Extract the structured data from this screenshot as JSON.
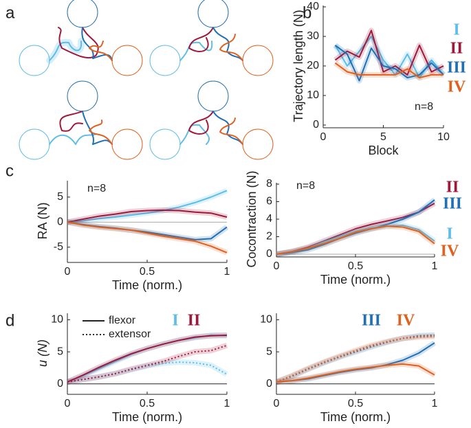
{
  "panel_labels": [
    "a",
    "b",
    "c",
    "d"
  ],
  "chart_data": [
    {
      "type": "line",
      "ylabel": "Trajectory length (N)",
      "xlabel": "Block",
      "annotation": "n=8",
      "x": [
        1,
        2,
        3,
        4,
        5,
        6,
        7,
        8,
        9,
        10
      ],
      "xlim": [
        0,
        10
      ],
      "xticks": [
        0,
        5,
        10
      ],
      "ylim": [
        0,
        40
      ],
      "yticks": [
        0,
        10,
        20,
        30,
        40
      ],
      "series": [
        {
          "name": "I",
          "color": "#5cbde9",
          "values": [
            27,
            20,
            25,
            30,
            22,
            17,
            24,
            16,
            22,
            17
          ]
        },
        {
          "name": "II",
          "color": "#a0173a",
          "values": [
            22,
            25,
            23,
            32,
            18,
            20,
            17,
            27,
            18,
            20
          ]
        },
        {
          "name": "III",
          "color": "#1f6fb5",
          "values": [
            27,
            24,
            15,
            26,
            20,
            19,
            16,
            17,
            21,
            17
          ]
        },
        {
          "name": "IV",
          "color": "#e0601e",
          "values": [
            21,
            18,
            17,
            17,
            17,
            17,
            19,
            16,
            17,
            17
          ]
        }
      ]
    },
    {
      "type": "line",
      "ylabel": "RA (N)",
      "xlabel": "Time (norm.)",
      "annotation": "n=8",
      "x": [
        0,
        0.1,
        0.2,
        0.3,
        0.4,
        0.5,
        0.6,
        0.7,
        0.8,
        0.9,
        1
      ],
      "xlim": [
        0,
        1
      ],
      "xticks": [
        0,
        0.5,
        1
      ],
      "ylim": [
        -7.5,
        8
      ],
      "yticks": [
        -5,
        0,
        5
      ],
      "reference_line": 0,
      "series": [
        {
          "color": "#5cbde9",
          "values": [
            0,
            0.3,
            0.7,
            1.0,
            1.4,
            1.8,
            2.3,
            3.0,
            3.9,
            5.0,
            6.3
          ]
        },
        {
          "color": "#a0173a",
          "values": [
            0,
            0.6,
            1.2,
            1.6,
            2.1,
            2.3,
            2.4,
            2.3,
            2.0,
            1.8,
            1.0
          ]
        },
        {
          "color": "#1f6fb5",
          "values": [
            0,
            -0.5,
            -0.9,
            -1.2,
            -1.6,
            -2.0,
            -2.5,
            -3.0,
            -3.5,
            -3.3,
            -1.0
          ]
        },
        {
          "color": "#e0601e",
          "values": [
            0,
            -0.6,
            -1.0,
            -1.3,
            -1.6,
            -2.2,
            -2.8,
            -3.3,
            -3.8,
            -4.8,
            -6.1
          ]
        }
      ]
    },
    {
      "type": "line",
      "ylabel": "Cocontraction (N)",
      "xlabel": "Time (norm.)",
      "annotation": "n=8",
      "x": [
        0,
        0.1,
        0.2,
        0.3,
        0.4,
        0.5,
        0.6,
        0.7,
        0.8,
        0.9,
        1
      ],
      "xlim": [
        0,
        1
      ],
      "xticks": [
        0,
        0.5,
        1
      ],
      "ylim": [
        0,
        8
      ],
      "yticks": [
        0,
        2,
        4,
        6,
        8
      ],
      "reference_line": 0,
      "series": [
        {
          "name": "II",
          "color": "#a0173a",
          "values": [
            0,
            0.3,
            0.8,
            1.5,
            2.2,
            2.9,
            3.4,
            3.8,
            4.2,
            4.8,
            5.8
          ]
        },
        {
          "name": "III",
          "color": "#1f6fb5",
          "values": [
            0,
            0.2,
            0.5,
            1.1,
            1.8,
            2.4,
            2.9,
            3.4,
            4.0,
            4.8,
            6.2
          ]
        },
        {
          "name": "I",
          "color": "#5cbde9",
          "values": [
            0,
            0.3,
            0.7,
            1.4,
            2.0,
            2.6,
            3.0,
            3.2,
            3.3,
            2.8,
            1.5
          ]
        },
        {
          "name": "IV",
          "color": "#e0601e",
          "values": [
            0,
            0.3,
            0.7,
            1.2,
            1.8,
            2.5,
            2.9,
            3.2,
            3.1,
            2.6,
            1.2
          ]
        }
      ]
    },
    {
      "type": "line",
      "ylabel": "u (N)",
      "xlabel": "Time (norm.)",
      "x": [
        0,
        0.1,
        0.2,
        0.3,
        0.4,
        0.5,
        0.6,
        0.7,
        0.8,
        0.9,
        1
      ],
      "xlim": [
        0,
        1
      ],
      "xticks": [
        0,
        0.5,
        1
      ],
      "ylim": [
        -1.2,
        10.8
      ],
      "yticks": [
        0,
        5,
        10
      ],
      "reference_line": 0,
      "legend": [
        {
          "label": "flexor",
          "key": "flexor",
          "dash": "solid"
        },
        {
          "label": "extensor",
          "key": "extensor",
          "dash": "dotted"
        }
      ],
      "series": [
        {
          "name": "I",
          "color": "#5cbde9",
          "flexor": [
            0.3,
            1.3,
            2.4,
            3.5,
            4.6,
            5.5,
            6.2,
            6.8,
            7.2,
            7.6,
            7.5
          ],
          "extensor": [
            0.3,
            0.7,
            1.1,
            1.6,
            2.2,
            2.8,
            3.2,
            3.4,
            3.3,
            2.9,
            1.5
          ]
        },
        {
          "name": "II",
          "color": "#a0173a",
          "flexor": [
            0.3,
            1.4,
            2.6,
            3.7,
            4.7,
            5.5,
            6.2,
            6.8,
            7.3,
            7.5,
            7.6
          ],
          "extensor": [
            0.3,
            0.7,
            1.1,
            1.6,
            2.3,
            2.9,
            3.5,
            4.3,
            5.0,
            5.2,
            6.0
          ]
        }
      ]
    },
    {
      "type": "line",
      "xlabel": "Time (norm.)",
      "x": [
        0,
        0.1,
        0.2,
        0.3,
        0.4,
        0.5,
        0.6,
        0.7,
        0.8,
        0.9,
        1
      ],
      "xlim": [
        0,
        1
      ],
      "xticks": [
        0,
        0.5,
        1
      ],
      "ylim": [
        -1.2,
        10.8
      ],
      "yticks": [
        0,
        5,
        10
      ],
      "reference_line": 0,
      "series": [
        {
          "name": "III",
          "color": "#1f6fb5",
          "flexor": [
            0.3,
            0.5,
            0.8,
            1.3,
            1.8,
            2.2,
            2.5,
            3.0,
            3.7,
            4.8,
            6.4
          ],
          "extensor": [
            0.3,
            1.2,
            2.3,
            3.3,
            4.2,
            5.0,
            5.8,
            6.5,
            7.1,
            7.5,
            7.6
          ]
        },
        {
          "name": "IV",
          "color": "#e0601e",
          "flexor": [
            0.3,
            0.5,
            0.9,
            1.4,
            1.9,
            2.3,
            2.6,
            2.9,
            3.1,
            2.8,
            1.4
          ],
          "extensor": [
            0.3,
            1.3,
            2.4,
            3.4,
            4.3,
            5.2,
            6.0,
            6.6,
            7.1,
            7.3,
            7.4
          ]
        }
      ]
    }
  ]
}
